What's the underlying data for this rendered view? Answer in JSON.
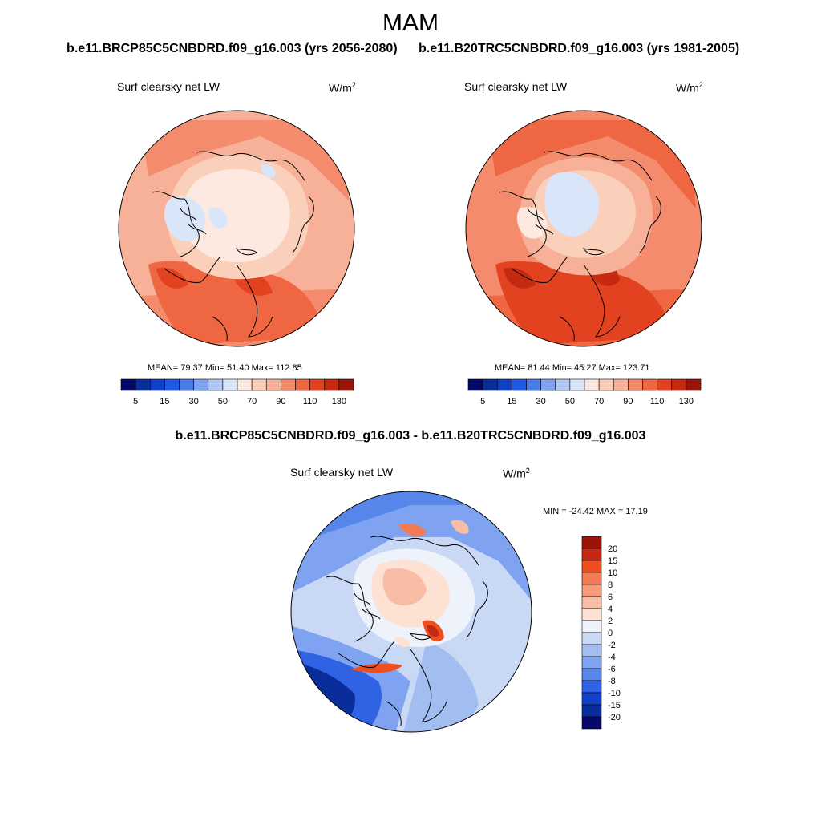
{
  "season": "MAM",
  "case_a_title": "b.e11.BRCP85C5CNBDRD.f09_g16.003 (yrs 2056-2080)",
  "case_b_title": "b.e11.B20TRC5CNBDRD.f09_g16.003 (yrs 1981-2005)",
  "diff_title": "b.e11.BRCP85C5CNBDRD.f09_g16.003 - b.e11.B20TRC5CNBDRD.f09_g16.003",
  "variable_label": "Surf clearsky net LW",
  "units_base": "W/m",
  "units_exp": "2",
  "panel_a_stats": "MEAN=  79.37  Min=  51.40  Max= 112.85",
  "panel_b_stats": "MEAN=  81.44  Min=  45.27  Max= 123.71",
  "diff_stats": "MIN = -24.42 MAX =  17.19",
  "abs_colorbar": {
    "colors": [
      "#08086b",
      "#0a2d9c",
      "#1141c8",
      "#2158e6",
      "#4a7de9",
      "#7fa3f0",
      "#b3c9f5",
      "#d9e6fa",
      "#fde9df",
      "#fbd0bb",
      "#f8b199",
      "#f48b6c",
      "#ef6642",
      "#e2421f",
      "#c52912",
      "#9b1408"
    ],
    "tick_labels": [
      "5",
      "15",
      "30",
      "50",
      "70",
      "90",
      "110",
      "130"
    ]
  },
  "diff_colorbar": {
    "colors": [
      "#9b1408",
      "#c52912",
      "#ef4f1f",
      "#f37a55",
      "#f69a77",
      "#f9bca4",
      "#fde2d4",
      "#eef3fb",
      "#c8d8f5",
      "#a2bdf0",
      "#7fa3f0",
      "#5686ea",
      "#2f63e3",
      "#1141c8",
      "#0a2d9c",
      "#08086b"
    ],
    "tick_labels": [
      "20",
      "15",
      "10",
      "8",
      "6",
      "4",
      "2",
      "0",
      "-2",
      "-4",
      "-6",
      "-8",
      "-10",
      "-15",
      "-20"
    ]
  }
}
